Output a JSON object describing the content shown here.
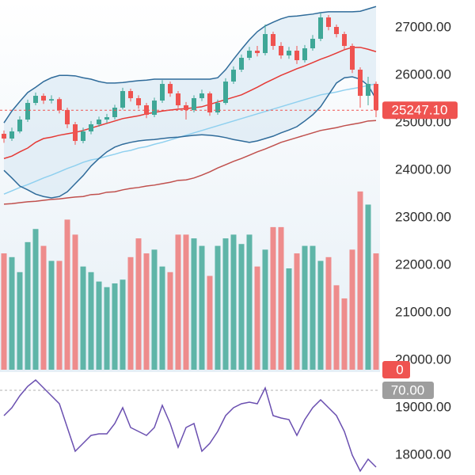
{
  "chart_data": {
    "type": "candlestick",
    "ylim": [
      17567,
      27567
    ],
    "yticks": [
      {
        "value": 18000,
        "label": "18000.00"
      },
      {
        "value": 19000,
        "label": "19000.00"
      },
      {
        "value": 20000,
        "label": "20000.00"
      },
      {
        "value": 21000,
        "label": "21000.00"
      },
      {
        "value": 22000,
        "label": "22000.00"
      },
      {
        "value": 23000,
        "label": "23000.00"
      },
      {
        "value": 24000,
        "label": "24000.00"
      },
      {
        "value": 25000,
        "label": "25000.00"
      },
      {
        "value": 26000,
        "label": "26000.00"
      },
      {
        "value": 27000,
        "label": "27000.00"
      }
    ],
    "up_color": "#3fa797",
    "down_color": "#ef5350",
    "open": [
      24750,
      24650,
      24800,
      25050,
      25400,
      25550,
      25450,
      25480,
      25250,
      24950,
      24600,
      24800,
      24950,
      25050,
      25100,
      25300,
      25650,
      25500,
      25350,
      25150,
      25450,
      25800,
      25600,
      25350,
      25250,
      25500,
      25600,
      25200,
      25400,
      25850,
      26100,
      26350,
      26500,
      26450,
      26850,
      26600,
      26400,
      26500,
      26300,
      26550,
      26750,
      27200,
      27000,
      26850,
      26600,
      26100,
      25550,
      25800
    ],
    "high": [
      24820,
      24880,
      25120,
      25470,
      25620,
      25600,
      25560,
      25520,
      25300,
      25000,
      24880,
      25020,
      25110,
      25170,
      25360,
      25720,
      25700,
      25560,
      25400,
      25510,
      25880,
      25850,
      25650,
      25420,
      25560,
      25680,
      25640,
      25470,
      25920,
      26170,
      26420,
      26580,
      26600,
      27050,
      26900,
      26680,
      26580,
      26600,
      26620,
      26830,
      27300,
      27250,
      27050,
      26900,
      26650,
      26150,
      25950,
      25850
    ],
    "low": [
      24560,
      24600,
      24760,
      25000,
      25350,
      25380,
      25390,
      25180,
      24870,
      24520,
      24550,
      24740,
      24900,
      24980,
      25050,
      25260,
      25430,
      25280,
      25080,
      25100,
      25400,
      25530,
      25290,
      25050,
      25200,
      25440,
      25130,
      25150,
      25360,
      25800,
      26050,
      26300,
      26380,
      26400,
      26520,
      26330,
      26330,
      26220,
      26250,
      26500,
      26700,
      26930,
      26780,
      26520,
      26030,
      25300,
      25350,
      25100
    ],
    "close": [
      24650,
      24800,
      25050,
      25400,
      25550,
      25450,
      25480,
      25250,
      24950,
      24600,
      24800,
      24950,
      25050,
      25100,
      25300,
      25650,
      25500,
      25350,
      25150,
      25450,
      25800,
      25600,
      25350,
      25250,
      25500,
      25600,
      25200,
      25400,
      25850,
      26100,
      26350,
      26500,
      26450,
      26850,
      26600,
      26400,
      26500,
      26300,
      26550,
      26750,
      27200,
      27000,
      26850,
      26600,
      26100,
      25550,
      25800,
      25247.1
    ],
    "bands": {
      "color": "#2f6b9a",
      "fill": "#dceaf4",
      "upper": [
        24980,
        25230,
        25430,
        25620,
        25730,
        25850,
        25930,
        25980,
        25980,
        25970,
        25930,
        25900,
        25850,
        25820,
        25820,
        25830,
        25850,
        25870,
        25880,
        25900,
        25900,
        25900,
        25900,
        25900,
        25900,
        25900,
        25900,
        25930,
        26100,
        26320,
        26530,
        26730,
        26900,
        27020,
        27100,
        27170,
        27220,
        27230,
        27250,
        27270,
        27300,
        27320,
        27320,
        27320,
        27320,
        27330,
        27380,
        27430
      ],
      "lower": [
        23980,
        23820,
        23650,
        23570,
        23480,
        23430,
        23400,
        23430,
        23530,
        23700,
        23870,
        24070,
        24230,
        24370,
        24470,
        24530,
        24570,
        24600,
        24620,
        24630,
        24650,
        24670,
        24680,
        24700,
        24720,
        24730,
        24720,
        24700,
        24670,
        24630,
        24600,
        24570,
        24600,
        24650,
        24700,
        24770,
        24830,
        24900,
        25020,
        25150,
        25320,
        25570,
        25820,
        25930,
        25950,
        25900,
        25770,
        25480
      ]
    },
    "lines": [
      {
        "color": "#e53935",
        "values": [
          24230,
          24280,
          24370,
          24450,
          24570,
          24650,
          24680,
          24720,
          24750,
          24780,
          24820,
          24870,
          24920,
          24970,
          25020,
          25070,
          25100,
          25130,
          25170,
          25200,
          25230,
          25250,
          25270,
          25280,
          25300,
          25320,
          25370,
          25420,
          25470,
          25520,
          25570,
          25650,
          25730,
          25820,
          25900,
          25980,
          26050,
          26120,
          26180,
          26250,
          26320,
          26380,
          26450,
          26520,
          26570,
          26570,
          26530,
          26480
        ]
      },
      {
        "color": "#8fd0ef",
        "values": [
          23480,
          23550,
          23620,
          23680,
          23750,
          23820,
          23880,
          23950,
          24020,
          24080,
          24150,
          24200,
          24230,
          24280,
          24320,
          24370,
          24400,
          24450,
          24480,
          24530,
          24570,
          24620,
          24670,
          24720,
          24770,
          24820,
          24870,
          24920,
          24970,
          25020,
          25070,
          25120,
          25170,
          25220,
          25270,
          25320,
          25370,
          25420,
          25470,
          25520,
          25570,
          25600,
          25630,
          25670,
          25700,
          25730,
          25770,
          25800
        ]
      },
      {
        "color": "#c0504d",
        "values": [
          23270,
          23280,
          23300,
          23320,
          23330,
          23350,
          23370,
          23380,
          23400,
          23420,
          23430,
          23470,
          23480,
          23520,
          23530,
          23570,
          23600,
          23620,
          23650,
          23670,
          23700,
          23730,
          23770,
          23780,
          23820,
          23880,
          23950,
          24030,
          24100,
          24170,
          24230,
          24300,
          24370,
          24430,
          24500,
          24570,
          24620,
          24670,
          24720,
          24770,
          24820,
          24850,
          24880,
          24920,
          24950,
          24980,
          25020,
          25030
        ]
      }
    ],
    "last_price": {
      "value": 25247.1,
      "label": "25247.10",
      "color": "#ef5350"
    },
    "volume": {
      "up_color": "#5fb5a8",
      "down_color": "#ee8c8c",
      "ylim": [
        0,
        100
      ],
      "yticks": [
        0
      ],
      "values": [
        62,
        60,
        52,
        68,
        75,
        66,
        58,
        58,
        80,
        72,
        55,
        52,
        47,
        44,
        46,
        48,
        60,
        70,
        62,
        64,
        55,
        52,
        72,
        72,
        70,
        66,
        50,
        66,
        70,
        72,
        67,
        72,
        55,
        64,
        76,
        76,
        54,
        62,
        66,
        66,
        58,
        60,
        45,
        38,
        64,
        95,
        88,
        62
      ]
    },
    "rsi": {
      "color": "#6a4fb0",
      "ylim": [
        27.2,
        77.6
      ],
      "yticks": [
        {
          "value": 70,
          "label": "70.00"
        }
      ],
      "values": [
        57.2,
        61.2,
        67.2,
        72,
        75.2,
        71.2,
        67.2,
        63.2,
        51.2,
        39.2,
        43.2,
        47.2,
        48,
        48,
        53.2,
        61.2,
        51.2,
        49.2,
        47.2,
        51.2,
        62.4,
        53.2,
        41.2,
        51.2,
        53.2,
        39.2,
        43.2,
        49.2,
        57.2,
        61.2,
        63.2,
        64,
        63.2,
        71.2,
        57.2,
        56,
        55.2,
        47.2,
        55.2,
        61.2,
        65.2,
        61.2,
        57.2,
        49.2,
        37.2,
        29.2,
        35.2,
        31.2
      ]
    }
  }
}
